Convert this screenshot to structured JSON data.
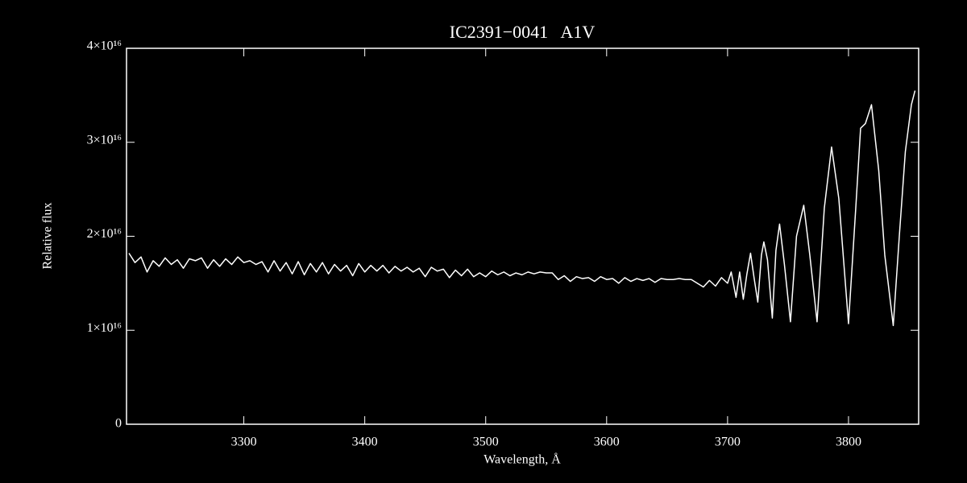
{
  "chart_data": {
    "type": "line",
    "title": "IC2391−0041   A1V",
    "x_label": "Wavelength, Å",
    "y_label": "Relative flux",
    "color": "#ffffff",
    "xlim": [
      3203,
      3858
    ],
    "xticks": [
      3300,
      3400,
      3500,
      3600,
      3700,
      3800
    ],
    "ylim": [
      0,
      4e+16
    ],
    "yticks": [
      0,
      {
        "value": 1e+16,
        "label": "1×10¹⁶"
      },
      {
        "value": 2e+16,
        "label": "2×10¹⁶"
      },
      {
        "value": 3e+16,
        "label": "3×10¹⁶"
      },
      {
        "value": 4e+16,
        "label": "4×10¹⁶"
      }
    ],
    "x": [
      3205,
      3210,
      3215,
      3220,
      3225,
      3230,
      3235,
      3240,
      3245,
      3250,
      3255,
      3260,
      3265,
      3270,
      3275,
      3280,
      3285,
      3290,
      3295,
      3300,
      3305,
      3310,
      3315,
      3320,
      3325,
      3330,
      3335,
      3340,
      3345,
      3350,
      3355,
      3360,
      3365,
      3370,
      3375,
      3380,
      3385,
      3390,
      3395,
      3400,
      3405,
      3410,
      3415,
      3420,
      3425,
      3430,
      3435,
      3440,
      3445,
      3450,
      3455,
      3460,
      3465,
      3470,
      3475,
      3480,
      3485,
      3490,
      3495,
      3500,
      3505,
      3510,
      3515,
      3520,
      3525,
      3530,
      3535,
      3540,
      3545,
      3550,
      3555,
      3560,
      3565,
      3570,
      3575,
      3580,
      3585,
      3590,
      3595,
      3600,
      3605,
      3610,
      3615,
      3620,
      3625,
      3630,
      3635,
      3640,
      3645,
      3650,
      3655,
      3660,
      3665,
      3670,
      3675,
      3680,
      3685,
      3690,
      3695,
      3700,
      3703,
      3707,
      3710,
      3713,
      3716,
      3719,
      3722,
      3725,
      3728,
      3730,
      3733,
      3737,
      3740,
      3743,
      3747,
      3752,
      3757,
      3763,
      3768,
      3774,
      3780,
      3786,
      3792,
      3800,
      3806,
      3810,
      3814,
      3819,
      3825,
      3830,
      3837,
      3842,
      3847,
      3852,
      3855
    ],
    "values": [
      1.82e+16,
      1.72e+16,
      1.78e+16,
      1.62e+16,
      1.74e+16,
      1.68e+16,
      1.77e+16,
      1.7e+16,
      1.75e+16,
      1.66e+16,
      1.76e+16,
      1.74e+16,
      1.77e+16,
      1.66e+16,
      1.75e+16,
      1.68e+16,
      1.76e+16,
      1.7e+16,
      1.78e+16,
      1.72e+16,
      1.74e+16,
      1.7e+16,
      1.73e+16,
      1.62e+16,
      1.74e+16,
      1.63e+16,
      1.72e+16,
      1.6e+16,
      1.73e+16,
      1.59e+16,
      1.71e+16,
      1.62e+16,
      1.72e+16,
      1.6e+16,
      1.7e+16,
      1.63e+16,
      1.69e+16,
      1.58e+16,
      1.71e+16,
      1.62e+16,
      1.69e+16,
      1.63e+16,
      1.69e+16,
      1.61e+16,
      1.68e+16,
      1.63e+16,
      1.67e+16,
      1.62e+16,
      1.66e+16,
      1.57e+16,
      1.67e+16,
      1.63e+16,
      1.65e+16,
      1.56e+16,
      1.64e+16,
      1.58e+16,
      1.65e+16,
      1.57e+16,
      1.61e+16,
      1.57e+16,
      1.63e+16,
      1.59e+16,
      1.62e+16,
      1.58e+16,
      1.61e+16,
      1.59e+16,
      1.62e+16,
      1.6e+16,
      1.62e+16,
      1.61e+16,
      1.61e+16,
      1.54e+16,
      1.58e+16,
      1.52e+16,
      1.57e+16,
      1.55e+16,
      1.56e+16,
      1.52e+16,
      1.57e+16,
      1.54e+16,
      1.55e+16,
      1.5e+16,
      1.56e+16,
      1.52e+16,
      1.55e+16,
      1.53e+16,
      1.55e+16,
      1.51e+16,
      1.55e+16,
      1.54e+16,
      1.54e+16,
      1.55e+16,
      1.54e+16,
      1.54e+16,
      1.5e+16,
      1.46e+16,
      1.53e+16,
      1.47e+16,
      1.56e+16,
      1.5e+16,
      1.62e+16,
      1.35e+16,
      1.62e+16,
      1.33e+16,
      1.6e+16,
      1.82e+16,
      1.55e+16,
      1.3e+16,
      1.8e+16,
      1.94e+16,
      1.75e+16,
      1.13e+16,
      1.85e+16,
      2.13e+16,
      1.7e+16,
      1.09e+16,
      2e+16,
      2.33e+16,
      1.8e+16,
      1.09e+16,
      2.3e+16,
      2.95e+16,
      2.4e+16,
      1.07e+16,
      2.3e+16,
      3.15e+16,
      3.2e+16,
      3.4e+16,
      2.7e+16,
      1.8e+16,
      1.05e+16,
      2e+16,
      2.9e+16,
      3.4e+16,
      3.55e+16
    ]
  }
}
